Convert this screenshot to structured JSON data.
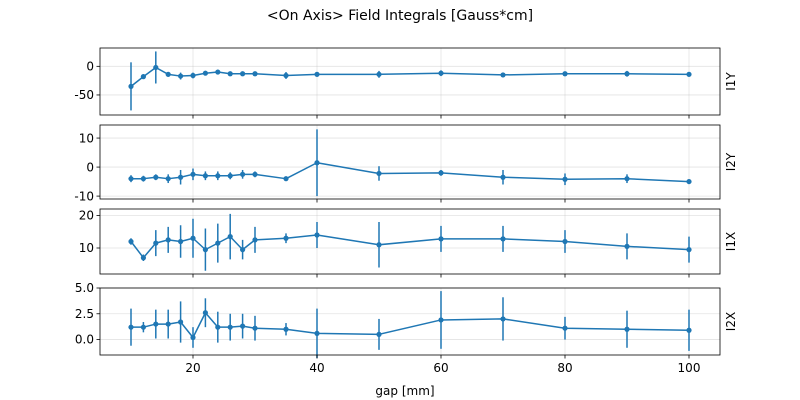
{
  "title": "<On Axis> Field Integrals [Gauss*cm]",
  "xlabel": "gap [mm]",
  "chart_data": {
    "type": "line",
    "subtype": "errorbar",
    "title": "<On Axis> Field Integrals [Gauss*cm]",
    "xlabel": "gap [mm]",
    "xlim": [
      5,
      105
    ],
    "xticks": [
      20,
      40,
      60,
      80,
      100
    ],
    "grid": true,
    "color": "#1f77b4",
    "x": [
      10,
      12,
      14,
      16,
      18,
      20,
      22,
      24,
      26,
      28,
      30,
      35,
      40,
      50,
      60,
      70,
      80,
      90,
      100
    ],
    "panels": [
      {
        "ylabel": "I1Y",
        "ylim": [
          -85,
          32
        ],
        "yticks": [
          0,
          -50
        ],
        "y": [
          -35,
          -18,
          -2,
          -14,
          -17,
          -16,
          -12,
          -10,
          -13,
          -13,
          -13,
          -16,
          -14,
          -14,
          -12,
          -15,
          -13,
          -13,
          -14
        ],
        "err": [
          42,
          4,
          28,
          4,
          6,
          5,
          4,
          4,
          3,
          3,
          3,
          6,
          3,
          6,
          5,
          3,
          3,
          5,
          3
        ]
      },
      {
        "ylabel": "I2Y",
        "ylim": [
          -11,
          14.5
        ],
        "yticks": [
          10,
          0,
          -10
        ],
        "y": [
          -4,
          -4,
          -3.5,
          -4,
          -3.5,
          -2.5,
          -3,
          -3,
          -3,
          -2.5,
          -2.5,
          -4,
          1.5,
          -2.2,
          -2,
          -3.5,
          -4.2,
          -4,
          -5
        ],
        "err": [
          1.2,
          1,
          1,
          1.5,
          2.5,
          2,
          1.5,
          1.5,
          1.2,
          1.5,
          1,
          0.8,
          11.5,
          2.5,
          1,
          2.5,
          2,
          1.5,
          0.8
        ]
      },
      {
        "ylabel": "I1X",
        "ylim": [
          2,
          22
        ],
        "yticks": [
          20,
          10
        ],
        "y": [
          12,
          7,
          11.5,
          12.5,
          12,
          13,
          9.5,
          11.5,
          13.5,
          9.5,
          12.5,
          13,
          14,
          11,
          12.8,
          12.8,
          12,
          10.5,
          9.5
        ],
        "err": [
          1,
          1,
          4,
          4,
          5,
          6,
          6.5,
          6,
          7,
          3,
          4,
          1.5,
          4,
          7,
          4,
          4,
          3.5,
          4,
          4
        ]
      },
      {
        "ylabel": "I2X",
        "ylim": [
          -1.5,
          5
        ],
        "yticks": [
          5.0,
          2.5,
          0.0
        ],
        "yticklabels": [
          "5.0",
          "2.5",
          "0.0"
        ],
        "y": [
          1.2,
          1.2,
          1.5,
          1.5,
          1.7,
          0.2,
          2.6,
          1.2,
          1.2,
          1.3,
          1.1,
          1.0,
          0.6,
          0.5,
          1.9,
          2.0,
          1.1,
          1.0,
          0.9
        ],
        "err": [
          1.8,
          0.5,
          1.4,
          1.4,
          2.0,
          1.0,
          1.4,
          1.5,
          1.3,
          1.2,
          1.2,
          0.6,
          2.4,
          1.5,
          2.8,
          2.1,
          1.1,
          1.8,
          2.0
        ]
      }
    ]
  }
}
